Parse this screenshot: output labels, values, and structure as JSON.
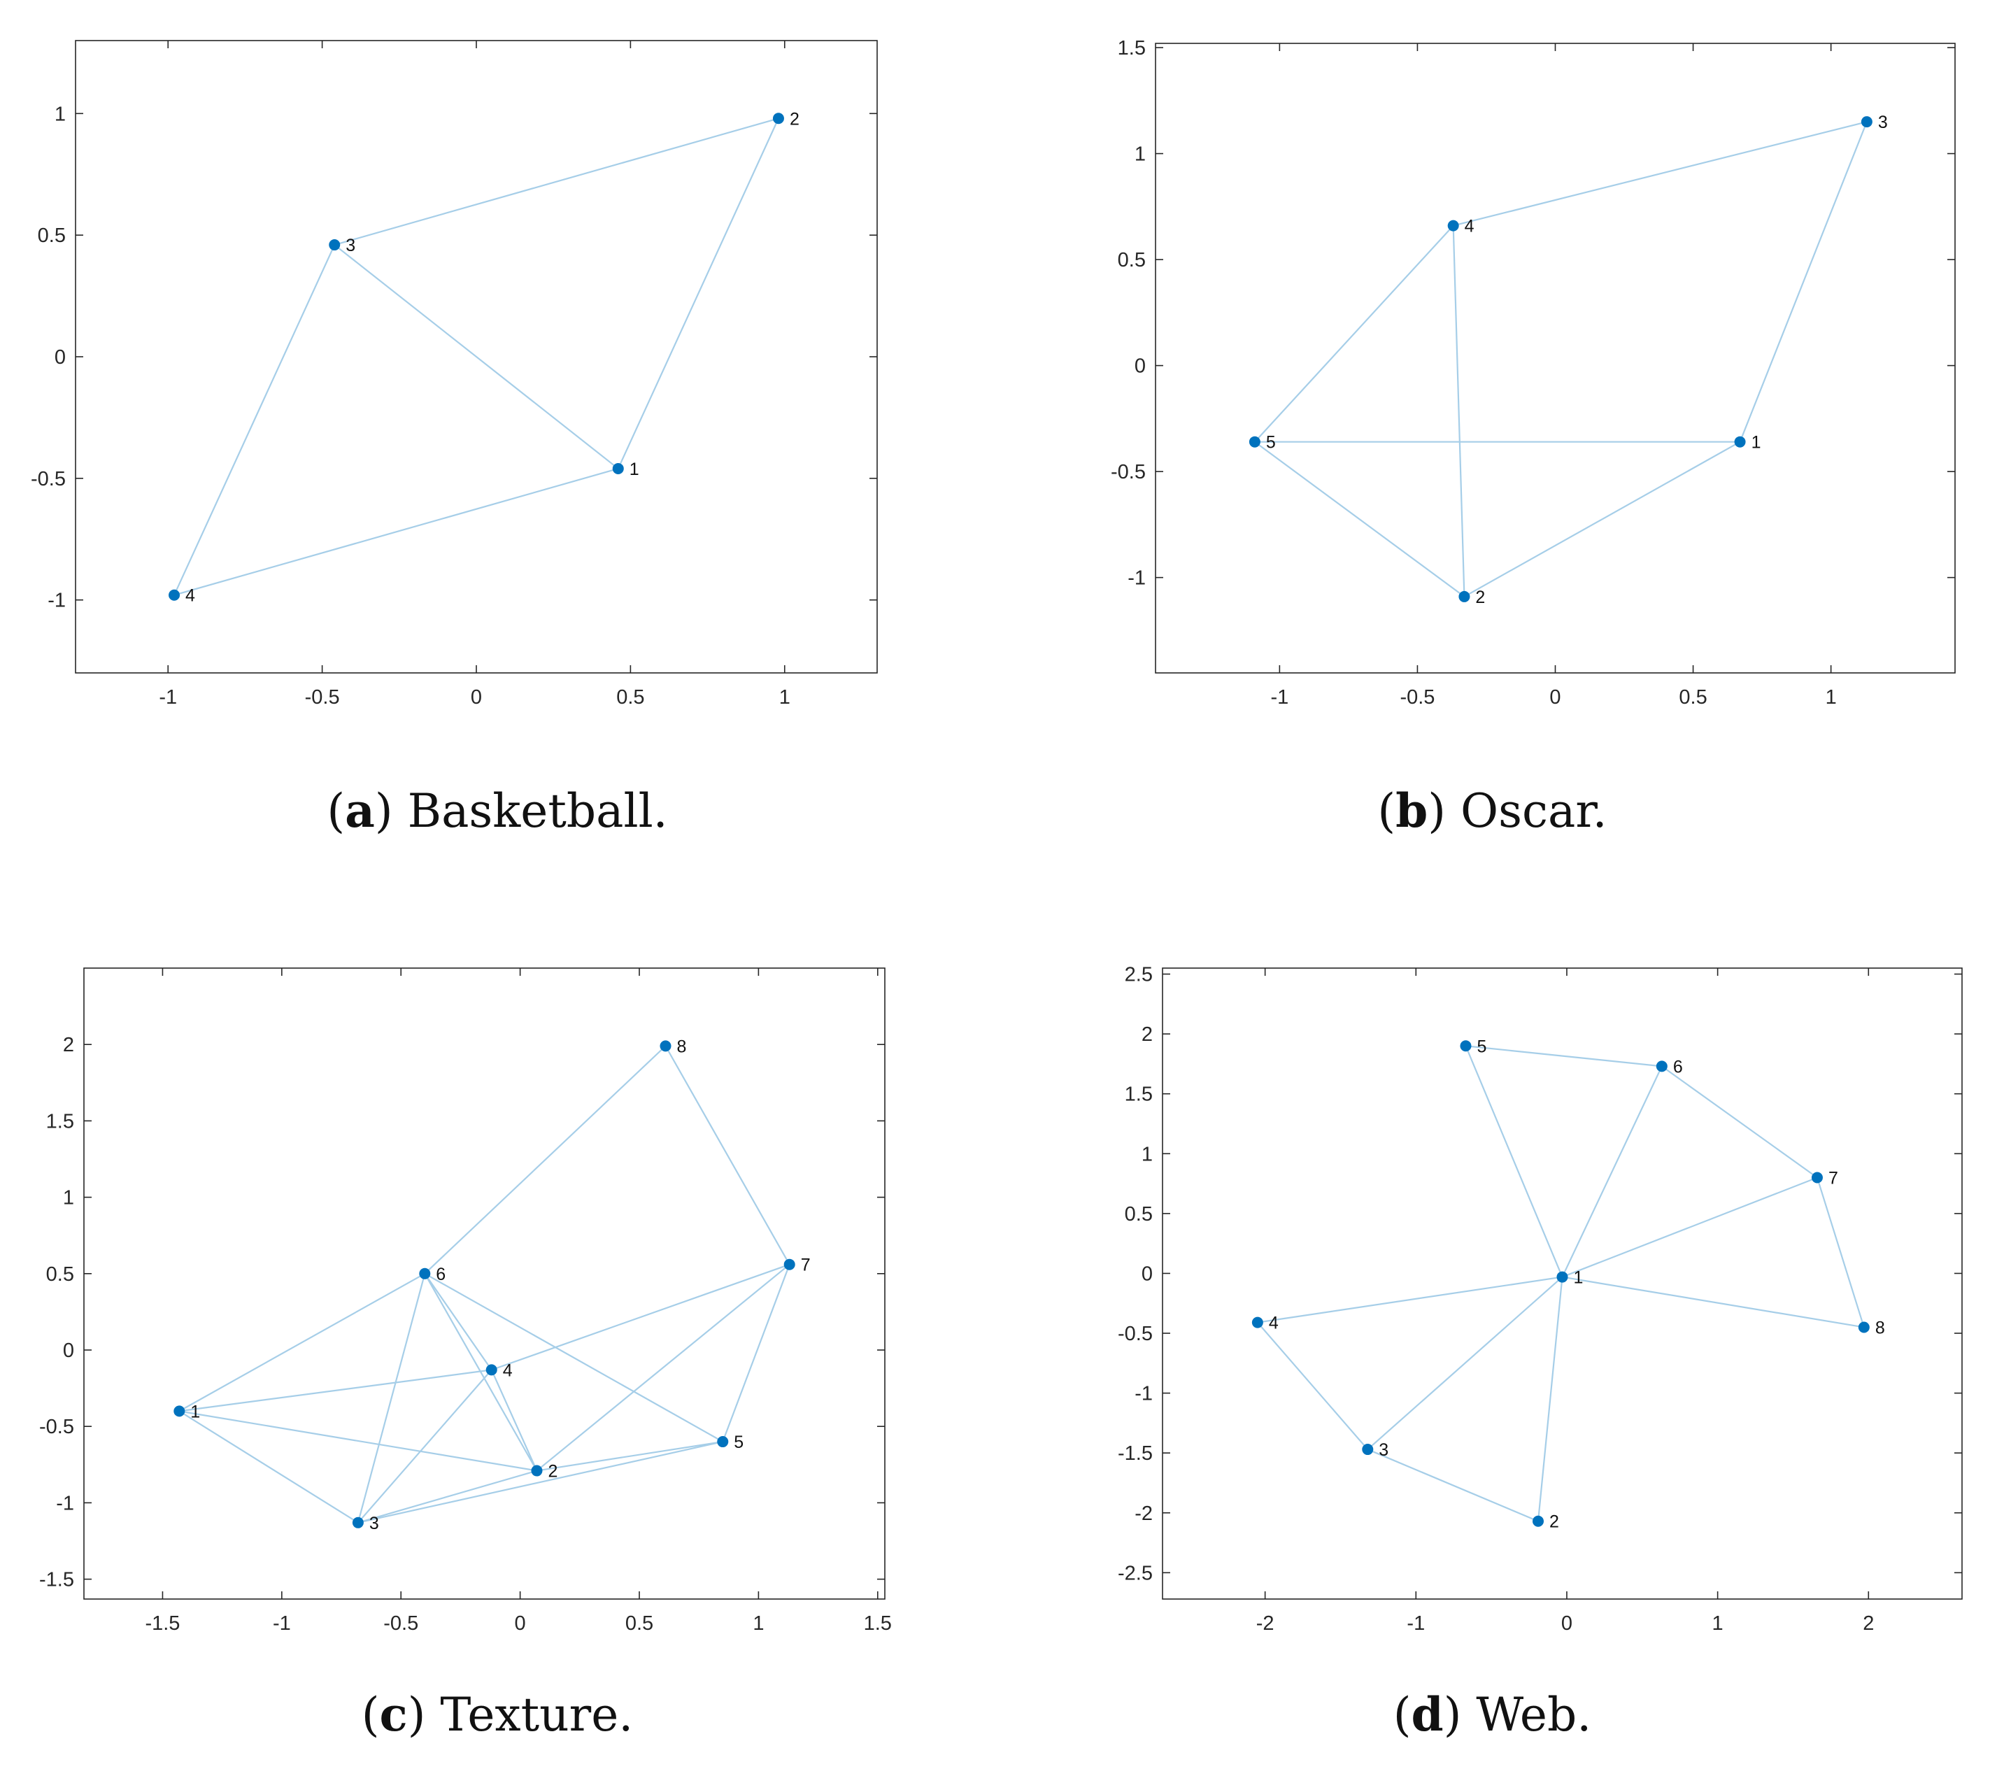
{
  "figure": {
    "panels": [
      {
        "id": "a",
        "letter": "a",
        "caption": " Basketball."
      },
      {
        "id": "b",
        "letter": "b",
        "caption": " Oscar."
      },
      {
        "id": "c",
        "letter": "c",
        "caption": " Texture."
      },
      {
        "id": "d",
        "letter": "d",
        "caption": " Web."
      }
    ]
  },
  "chart_data": [
    {
      "type": "scatter",
      "title": "Basketball.",
      "xlim": [
        -1.3,
        1.3
      ],
      "ylim": [
        -1.3,
        1.3
      ],
      "xticks": [
        -1,
        -0.5,
        0,
        0.5,
        1
      ],
      "xtick_labels": [
        "-1",
        "-0.5",
        "0",
        "0.5",
        "1"
      ],
      "yticks": [
        -1,
        -0.5,
        0,
        0.5,
        1
      ],
      "ytick_labels": [
        "-1",
        "-0.5",
        "0",
        "0.5",
        "1"
      ],
      "nodes": [
        {
          "label": "1",
          "x": 0.46,
          "y": -0.46
        },
        {
          "label": "2",
          "x": 0.98,
          "y": 0.98
        },
        {
          "label": "3",
          "x": -0.46,
          "y": 0.46
        },
        {
          "label": "4",
          "x": -0.98,
          "y": -0.98
        }
      ],
      "edges": [
        [
          0,
          1
        ],
        [
          0,
          2
        ],
        [
          0,
          3
        ],
        [
          1,
          2
        ],
        [
          2,
          3
        ]
      ]
    },
    {
      "type": "scatter",
      "title": "Oscar.",
      "xlim": [
        -1.45,
        1.45
      ],
      "ylim": [
        -1.45,
        1.52
      ],
      "xticks": [
        -1,
        -0.5,
        0,
        0.5,
        1
      ],
      "xtick_labels": [
        "-1",
        "-0.5",
        "0",
        "0.5",
        "1"
      ],
      "yticks": [
        -1,
        -0.5,
        0,
        0.5,
        1,
        1.5
      ],
      "ytick_labels": [
        "-1",
        "-0.5",
        "0",
        "0.5",
        "1",
        "1.5"
      ],
      "nodes": [
        {
          "label": "1",
          "x": 0.67,
          "y": -0.36
        },
        {
          "label": "2",
          "x": -0.33,
          "y": -1.09
        },
        {
          "label": "3",
          "x": 1.13,
          "y": 1.15
        },
        {
          "label": "4",
          "x": -0.37,
          "y": 0.66
        },
        {
          "label": "5",
          "x": -1.09,
          "y": -0.36
        }
      ],
      "edges": [
        [
          0,
          1
        ],
        [
          0,
          2
        ],
        [
          0,
          4
        ],
        [
          1,
          3
        ],
        [
          1,
          4
        ],
        [
          2,
          3
        ],
        [
          3,
          4
        ]
      ]
    },
    {
      "type": "scatter",
      "title": "Texture.",
      "xlim": [
        -1.83,
        1.53
      ],
      "ylim": [
        -1.63,
        2.5
      ],
      "xticks": [
        -1.5,
        -1,
        -0.5,
        0,
        0.5,
        1,
        1.5
      ],
      "xtick_labels": [
        "-1.5",
        "-1",
        "-0.5",
        "0",
        "0.5",
        "1",
        "1.5"
      ],
      "yticks": [
        -1.5,
        -1,
        -0.5,
        0,
        0.5,
        1,
        1.5,
        2
      ],
      "ytick_labels": [
        "-1.5",
        "-1",
        "-0.5",
        "0",
        "0.5",
        "1",
        "1.5",
        "2"
      ],
      "nodes": [
        {
          "label": "1",
          "x": -1.43,
          "y": -0.4
        },
        {
          "label": "2",
          "x": 0.07,
          "y": -0.79
        },
        {
          "label": "3",
          "x": -0.68,
          "y": -1.13
        },
        {
          "label": "4",
          "x": -0.12,
          "y": -0.13
        },
        {
          "label": "5",
          "x": 0.85,
          "y": -0.6
        },
        {
          "label": "6",
          "x": -0.4,
          "y": 0.5
        },
        {
          "label": "7",
          "x": 1.13,
          "y": 0.56
        },
        {
          "label": "8",
          "x": 0.61,
          "y": 1.99
        }
      ],
      "edges": [
        [
          0,
          5
        ],
        [
          0,
          3
        ],
        [
          0,
          1
        ],
        [
          0,
          2
        ],
        [
          5,
          7
        ],
        [
          7,
          6
        ],
        [
          5,
          3
        ],
        [
          5,
          1
        ],
        [
          5,
          2
        ],
        [
          5,
          4
        ],
        [
          3,
          6
        ],
        [
          3,
          1
        ],
        [
          3,
          2
        ],
        [
          6,
          4
        ],
        [
          6,
          1
        ],
        [
          1,
          4
        ],
        [
          1,
          2
        ],
        [
          2,
          4
        ]
      ]
    },
    {
      "type": "scatter",
      "title": "Web.",
      "xlim": [
        -2.68,
        2.62
      ],
      "ylim": [
        -2.72,
        2.55
      ],
      "xticks": [
        -2,
        -1,
        0,
        1,
        2
      ],
      "xtick_labels": [
        "-2",
        "-1",
        "0",
        "1",
        "2"
      ],
      "yticks": [
        -2.5,
        -2,
        -1.5,
        -1,
        -0.5,
        0,
        0.5,
        1,
        1.5,
        2,
        2.5
      ],
      "ytick_labels": [
        "-2.5",
        "-2",
        "-1.5",
        "-1",
        "-0.5",
        "0",
        "0.5",
        "1",
        "1.5",
        "2",
        "2.5"
      ],
      "nodes": [
        {
          "label": "1",
          "x": -0.03,
          "y": -0.03
        },
        {
          "label": "2",
          "x": -0.19,
          "y": -2.07
        },
        {
          "label": "3",
          "x": -1.32,
          "y": -1.47
        },
        {
          "label": "4",
          "x": -2.05,
          "y": -0.41
        },
        {
          "label": "5",
          "x": -0.67,
          "y": 1.9
        },
        {
          "label": "6",
          "x": 0.63,
          "y": 1.73
        },
        {
          "label": "7",
          "x": 1.66,
          "y": 0.8
        },
        {
          "label": "8",
          "x": 1.97,
          "y": -0.45
        }
      ],
      "edges": [
        [
          0,
          1
        ],
        [
          0,
          2
        ],
        [
          0,
          3
        ],
        [
          0,
          4
        ],
        [
          0,
          5
        ],
        [
          0,
          6
        ],
        [
          0,
          7
        ],
        [
          1,
          2
        ],
        [
          2,
          3
        ],
        [
          4,
          5
        ],
        [
          5,
          6
        ],
        [
          6,
          7
        ]
      ]
    }
  ],
  "colors": {
    "node": "#0072BD",
    "edge": "#A6CEE8",
    "axis": "#262626"
  }
}
